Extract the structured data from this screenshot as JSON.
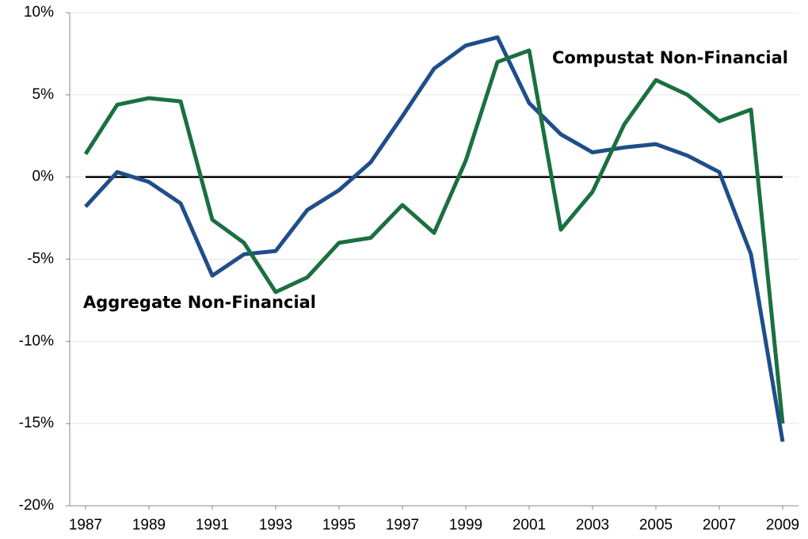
{
  "chart_data": {
    "type": "line",
    "x": [
      1987,
      1988,
      1989,
      1990,
      1991,
      1992,
      1993,
      1994,
      1995,
      1996,
      1997,
      1998,
      1999,
      2000,
      2001,
      2002,
      2003,
      2004,
      2005,
      2006,
      2007,
      2008,
      2009
    ],
    "series": [
      {
        "name": "Aggregate Non-Financial",
        "color": "#1f4e89",
        "values": [
          -1.8,
          0.3,
          -0.3,
          -1.6,
          -6.0,
          -4.7,
          -4.5,
          -2.0,
          -0.8,
          0.9,
          3.7,
          6.6,
          8.0,
          8.5,
          4.5,
          2.6,
          1.5,
          1.8,
          2.0,
          1.3,
          0.3,
          -4.7,
          -16.1
        ]
      },
      {
        "name": "Compustat Non-Financial",
        "color": "#1a7040",
        "values": [
          1.4,
          4.4,
          4.8,
          4.6,
          -2.6,
          -4.0,
          -7.0,
          -6.1,
          -4.0,
          -3.7,
          -1.7,
          -3.4,
          1.0,
          7.0,
          7.7,
          -3.2,
          -0.9,
          3.2,
          5.9,
          5.0,
          3.4,
          4.1,
          -15.0
        ]
      }
    ],
    "xlim": [
      1986.5,
      2009.5
    ],
    "xticks": [
      1987,
      1989,
      1991,
      1993,
      1995,
      1997,
      1999,
      2001,
      2003,
      2005,
      2007,
      2009
    ],
    "ylim": [
      -20,
      10
    ],
    "yticks": [
      {
        "value": -20,
        "label": "-20%"
      },
      {
        "value": -15,
        "label": "-15%"
      },
      {
        "value": -10,
        "label": "-10%"
      },
      {
        "value": -5,
        "label": "-5%"
      },
      {
        "value": 0,
        "label": "0%"
      },
      {
        "value": 5,
        "label": "5%"
      },
      {
        "value": 10,
        "label": "10%"
      }
    ],
    "grid": true,
    "zero_line": true
  }
}
